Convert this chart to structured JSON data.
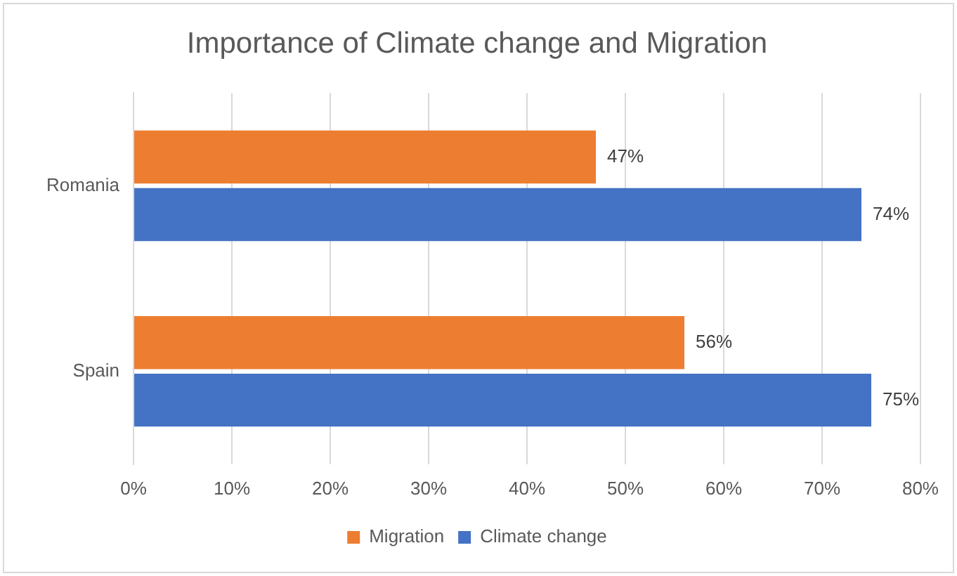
{
  "chart_data": {
    "type": "bar",
    "orientation": "horizontal",
    "title": "Importance of Climate change and Migration",
    "categories": [
      "Romania",
      "Spain"
    ],
    "series": [
      {
        "name": "Migration",
        "color": "#ed7d31",
        "values": [
          47,
          56
        ],
        "value_labels": [
          "47%",
          "56%"
        ]
      },
      {
        "name": "Climate change",
        "color": "#4472c4",
        "values": [
          74,
          75
        ],
        "value_labels": [
          "74%",
          "75%"
        ]
      }
    ],
    "xlim": [
      0,
      80
    ],
    "xticks": [
      {
        "value": 0,
        "label": "0%"
      },
      {
        "value": 10,
        "label": "10%"
      },
      {
        "value": 20,
        "label": "20%"
      },
      {
        "value": 30,
        "label": "30%"
      },
      {
        "value": 40,
        "label": "40%"
      },
      {
        "value": 50,
        "label": "50%"
      },
      {
        "value": 60,
        "label": "60%"
      },
      {
        "value": 70,
        "label": "70%"
      },
      {
        "value": 80,
        "label": "80%"
      }
    ],
    "grid": "x",
    "legend": "bottom"
  }
}
